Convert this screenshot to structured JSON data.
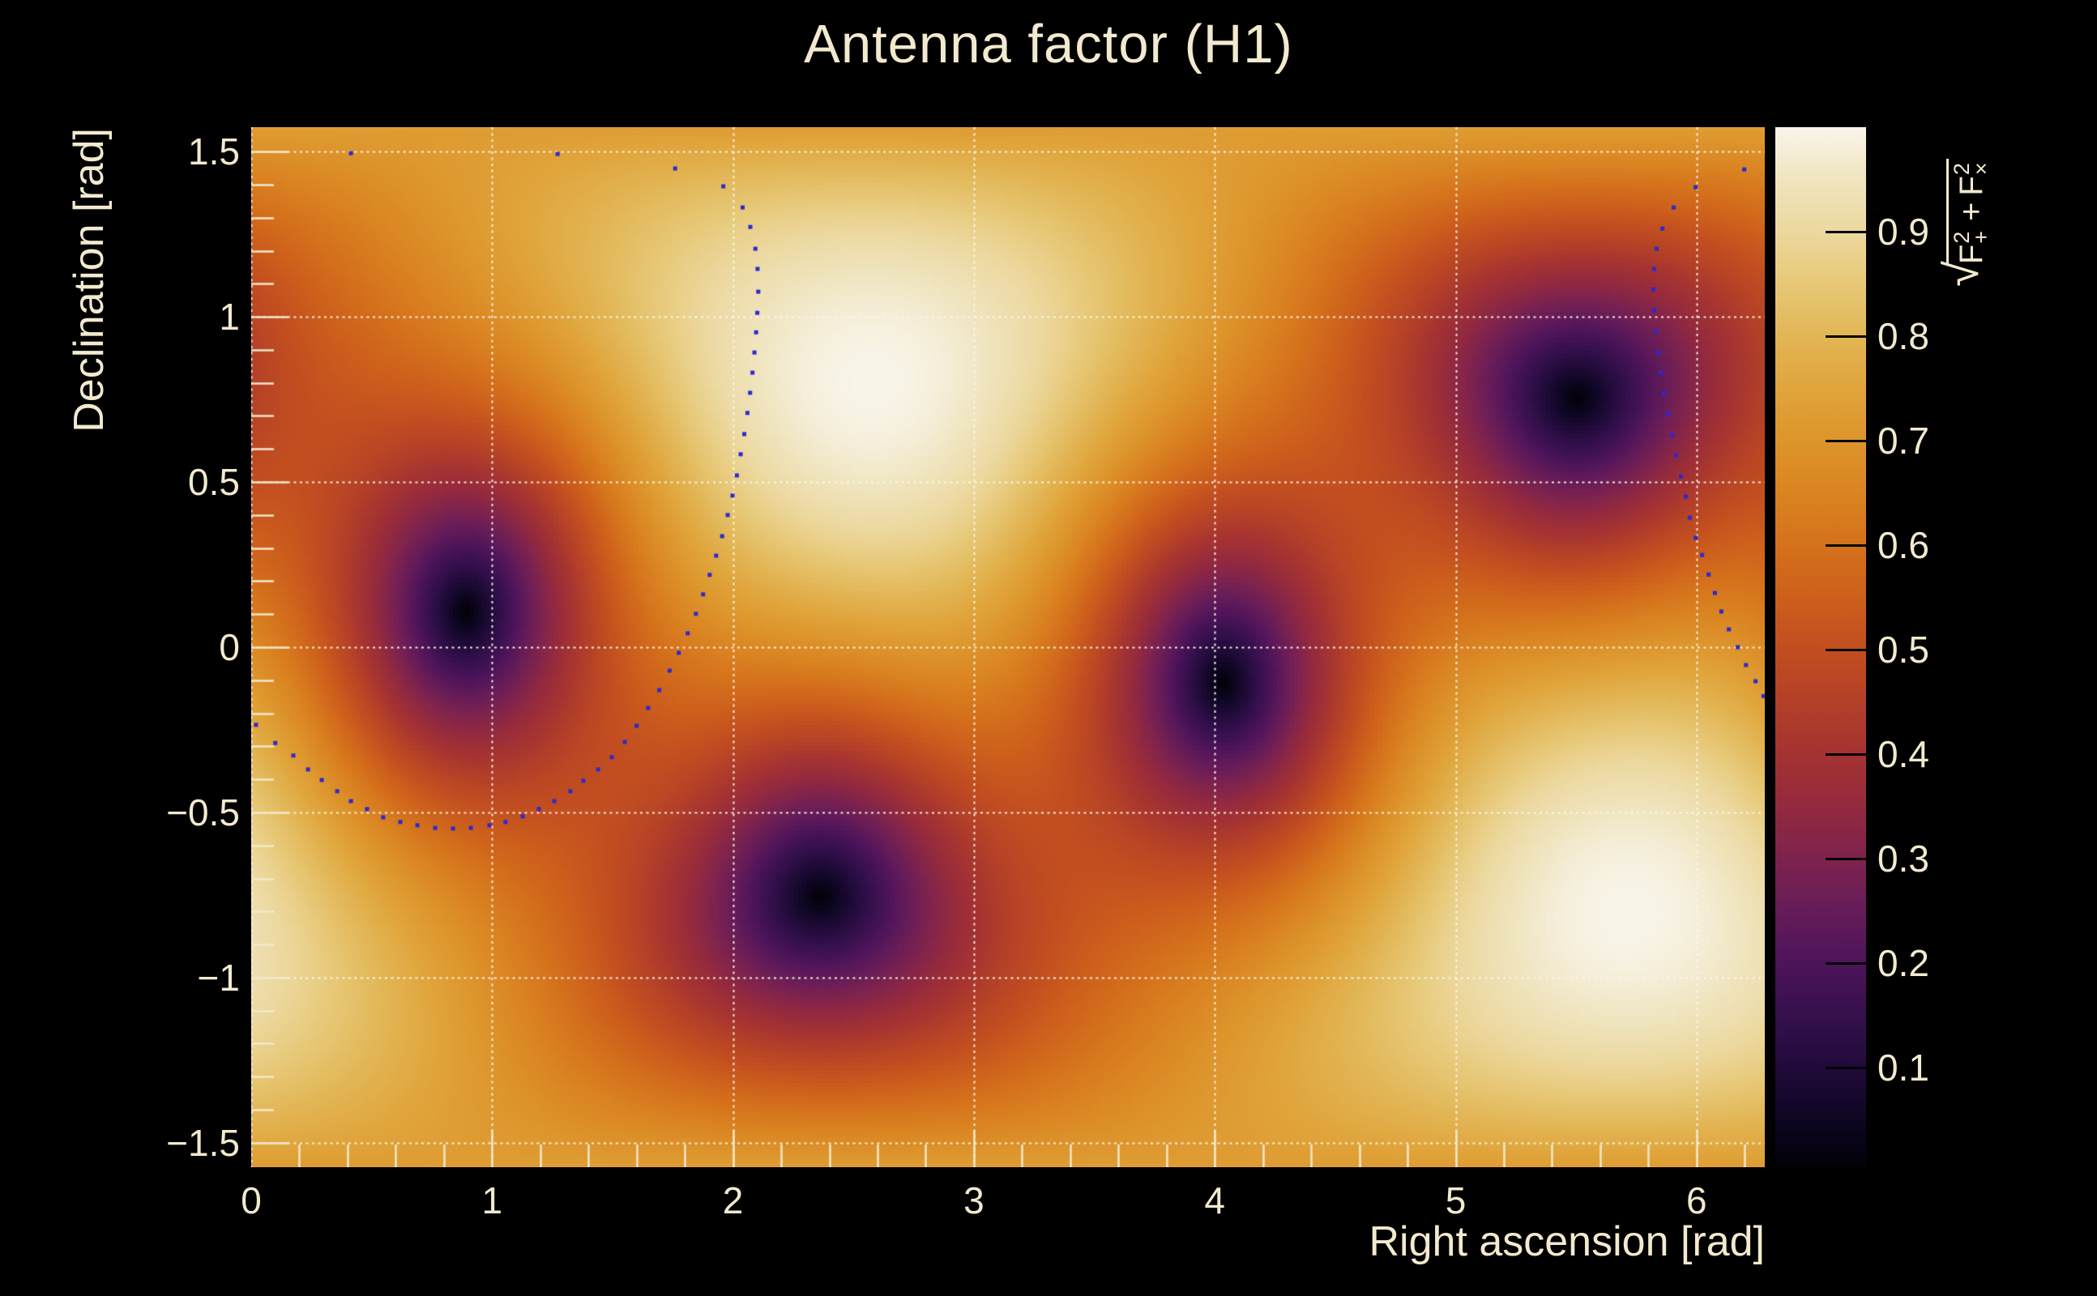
{
  "title": "Antenna factor (H1)",
  "axes": {
    "x": {
      "title": "Right ascension [rad]",
      "min": 0,
      "max": 6.2832,
      "minor_step": 0.2,
      "major_ticks": [
        0,
        1,
        2,
        3,
        4,
        5,
        6
      ],
      "major_labels": [
        "0",
        "1",
        "2",
        "3",
        "4",
        "5",
        "6"
      ]
    },
    "y": {
      "title": "Declination [rad]",
      "min": -1.574,
      "max": 1.574,
      "minor_step": 0.1,
      "major_ticks": [
        1.5,
        1,
        0.5,
        0,
        -0.5,
        -1,
        -1.5
      ],
      "major_labels": [
        "1.5",
        "1",
        "0.5",
        "0",
        "−0.5",
        "−1",
        "−1.5"
      ]
    }
  },
  "colorbar": {
    "min": 0.005,
    "max": 1.0,
    "ticks": [
      0.9,
      0.8,
      0.7,
      0.6,
      0.5,
      0.4,
      0.3,
      0.2,
      0.1
    ],
    "labels": [
      "0.9",
      "0.8",
      "0.7",
      "0.6",
      "0.5",
      "0.4",
      "0.3",
      "0.2",
      "0.1"
    ],
    "formula": {
      "radical": "√",
      "t1": {
        "base": "F",
        "sup": "2",
        "sub": "+"
      },
      "op": "+",
      "t2": {
        "base": "F",
        "sup": "2",
        "sub": "×"
      }
    }
  },
  "colors": {
    "background": "#000000",
    "text": "#f2e9cf",
    "grid": "#faf5e8",
    "tick": "#f2e8cc",
    "overlay_dot": "#2b29cf",
    "colorbar_tick": "#000000"
  },
  "chart_data": {
    "type": "heatmap",
    "title": "Antenna factor (H1)",
    "xlabel": "Right ascension [rad]",
    "ylabel": "Declination [rad]",
    "zlabel": "sqrt(F+^2 + Fx^2)",
    "x_range": [
      0,
      6.2832
    ],
    "y_range": [
      -1.574,
      1.574
    ],
    "z_range": [
      0.005,
      1.0
    ],
    "grid": {
      "x_lines": [
        0,
        1,
        2,
        3,
        4,
        5,
        6
      ],
      "y_lines": [
        -1.5,
        -1,
        -0.5,
        0,
        0.5,
        1,
        1.5
      ],
      "style": "dotted-white"
    },
    "bins": {
      "nx": 360,
      "ny": 247
    },
    "model": {
      "type": "interferometer_antenna_pattern_magnitude",
      "zenith_ra": 2.575,
      "zenith_dec": 0.805,
      "null_ra": 0.895,
      "null_dec": 0.108,
      "maxima": [
        [
          2.575,
          0.805
        ],
        [
          5.717,
          -0.805
        ]
      ],
      "nulls": [
        [
          0.895,
          0.108
        ],
        [
          2.352,
          -0.752
        ],
        [
          4.037,
          -0.108
        ],
        [
          5.494,
          0.752
        ]
      ]
    },
    "colormap_stops": [
      [
        0.0,
        "#030108"
      ],
      [
        0.05,
        "#0f0624"
      ],
      [
        0.1,
        "#220b3c"
      ],
      [
        0.15,
        "#37104e"
      ],
      [
        0.2,
        "#4f145a"
      ],
      [
        0.25,
        "#671c58"
      ],
      [
        0.3,
        "#7f234d"
      ],
      [
        0.35,
        "#952a3d"
      ],
      [
        0.4,
        "#a53331"
      ],
      [
        0.45,
        "#b44127"
      ],
      [
        0.5,
        "#c24e20"
      ],
      [
        0.55,
        "#cd601c"
      ],
      [
        0.6,
        "#d5721c"
      ],
      [
        0.65,
        "#da8422"
      ],
      [
        0.7,
        "#dd952c"
      ],
      [
        0.75,
        "#e0a53c"
      ],
      [
        0.8,
        "#e2b656"
      ],
      [
        0.85,
        "#e7c877"
      ],
      [
        0.9,
        "#ecd89f"
      ],
      [
        0.95,
        "#f0e5c0"
      ],
      [
        1.0,
        "#f8f4e9"
      ]
    ],
    "overlay_points": [
      [
        0.02,
        -0.235
      ],
      [
        0.1,
        -0.29
      ],
      [
        0.175,
        -0.328
      ],
      [
        0.236,
        -0.37
      ],
      [
        0.293,
        -0.402
      ],
      [
        0.357,
        -0.436
      ],
      [
        0.414,
        -0.466
      ],
      [
        0.481,
        -0.49
      ],
      [
        0.548,
        -0.515
      ],
      [
        0.619,
        -0.529
      ],
      [
        0.69,
        -0.539
      ],
      [
        0.764,
        -0.547
      ],
      [
        0.838,
        -0.549
      ],
      [
        0.912,
        -0.547
      ],
      [
        0.989,
        -0.539
      ],
      [
        1.056,
        -0.529
      ],
      [
        1.127,
        -0.512
      ],
      [
        1.194,
        -0.49
      ],
      [
        1.258,
        -0.466
      ],
      [
        1.325,
        -0.436
      ],
      [
        1.379,
        -0.404
      ],
      [
        1.44,
        -0.37
      ],
      [
        1.497,
        -0.333
      ],
      [
        1.551,
        -0.287
      ],
      [
        1.6,
        -0.238
      ],
      [
        1.648,
        -0.184
      ],
      [
        1.694,
        -0.13
      ],
      [
        1.737,
        -0.071
      ],
      [
        1.775,
        -0.017
      ],
      [
        1.812,
        0.042
      ],
      [
        1.846,
        0.101
      ],
      [
        1.876,
        0.16
      ],
      [
        1.903,
        0.219
      ],
      [
        1.93,
        0.277
      ],
      [
        1.955,
        0.336
      ],
      [
        1.978,
        0.4
      ],
      [
        1.998,
        0.459
      ],
      [
        2.016,
        0.52
      ],
      [
        2.032,
        0.584
      ],
      [
        2.047,
        0.645
      ],
      [
        2.06,
        0.709
      ],
      [
        2.071,
        0.77
      ],
      [
        2.081,
        0.831
      ],
      [
        2.089,
        0.892
      ],
      [
        2.096,
        0.953
      ],
      [
        2.101,
        1.012
      ],
      [
        2.105,
        1.076
      ],
      [
        2.102,
        1.145
      ],
      [
        2.093,
        1.206
      ],
      [
        2.072,
        1.272
      ],
      [
        2.04,
        1.331
      ],
      [
        1.96,
        1.395
      ],
      [
        1.76,
        1.449
      ],
      [
        1.272,
        1.493
      ],
      [
        0.414,
        1.495
      ],
      [
        6.198,
        1.446
      ],
      [
        5.996,
        1.392
      ],
      [
        5.905,
        1.331
      ],
      [
        5.858,
        1.267
      ],
      [
        5.834,
        1.206
      ],
      [
        5.824,
        1.145
      ],
      [
        5.821,
        1.083
      ],
      [
        5.824,
        1.02
      ],
      [
        5.831,
        0.956
      ],
      [
        5.841,
        0.892
      ],
      [
        5.851,
        0.831
      ],
      [
        5.864,
        0.767
      ],
      [
        5.881,
        0.706
      ],
      [
        5.898,
        0.642
      ],
      [
        5.915,
        0.581
      ],
      [
        5.935,
        0.517
      ],
      [
        5.955,
        0.456
      ],
      [
        5.972,
        0.392
      ],
      [
        5.996,
        0.331
      ],
      [
        6.023,
        0.279
      ],
      [
        6.05,
        0.22
      ],
      [
        6.076,
        0.164
      ],
      [
        6.103,
        0.108
      ],
      [
        6.134,
        0.054
      ],
      [
        6.171,
        0.0
      ],
      [
        6.205,
        -0.054
      ],
      [
        6.245,
        -0.103
      ],
      [
        6.278,
        -0.148
      ]
    ]
  }
}
